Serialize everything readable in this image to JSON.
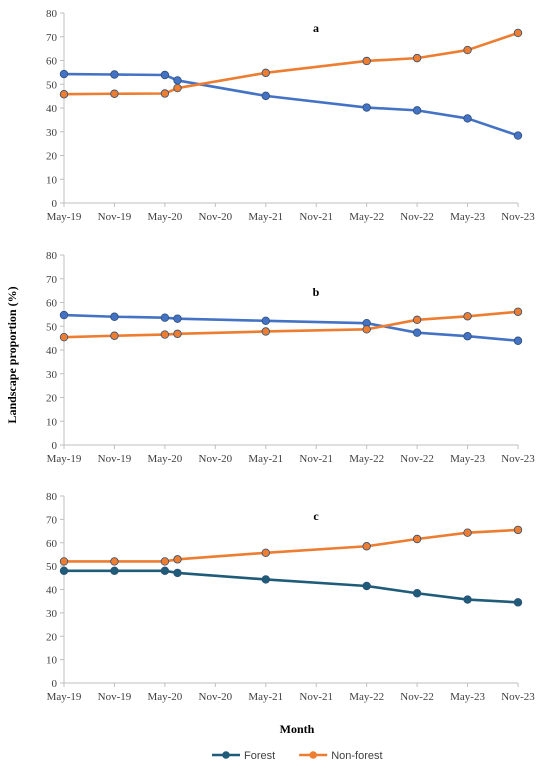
{
  "chart_data": [
    {
      "type": "line",
      "panel_label": "a",
      "x": [
        2019.375,
        2019.875,
        2020.375,
        2020.5,
        2021.375,
        2022.375,
        2022.875,
        2023.375,
        2023.875
      ],
      "categories": [
        "May-19",
        "Nov-19",
        "May-20",
        "Nov-20",
        "May-21",
        "Nov-21",
        "May-22",
        "Nov-22",
        "May-23",
        "Nov-23"
      ],
      "ylim": [
        0,
        80
      ],
      "yticks": [
        0,
        10,
        20,
        30,
        40,
        50,
        60,
        70,
        80
      ],
      "series": [
        {
          "name": "Forest",
          "color": "#4472C4",
          "values": [
            54.3,
            54.1,
            53.9,
            51.6,
            45.1,
            40.2,
            39.0,
            35.6,
            28.4
          ]
        },
        {
          "name": "Non-forest",
          "color": "#ED7D31",
          "values": [
            45.8,
            46.0,
            46.1,
            48.4,
            54.8,
            59.8,
            61.0,
            64.4,
            71.6
          ]
        }
      ]
    },
    {
      "type": "line",
      "panel_label": "b",
      "x": [
        2019.375,
        2019.875,
        2020.375,
        2020.5,
        2021.375,
        2022.375,
        2022.875,
        2023.375,
        2023.875
      ],
      "categories": [
        "May-19",
        "Nov-19",
        "May-20",
        "Nov-20",
        "May-21",
        "Nov-21",
        "May-22",
        "Nov-22",
        "May-23",
        "Nov-23"
      ],
      "ylim": [
        0,
        80
      ],
      "yticks": [
        0,
        10,
        20,
        30,
        40,
        50,
        60,
        70,
        80
      ],
      "series": [
        {
          "name": "Forest",
          "color": "#4472C4",
          "values": [
            54.7,
            54.0,
            53.6,
            53.2,
            52.3,
            51.3,
            47.3,
            45.8,
            43.9
          ]
        },
        {
          "name": "Non-forest",
          "color": "#ED7D31",
          "values": [
            45.4,
            46.0,
            46.5,
            46.8,
            47.8,
            48.7,
            52.7,
            54.2,
            56.1
          ]
        }
      ]
    },
    {
      "type": "line",
      "panel_label": "c",
      "x": [
        2019.375,
        2019.875,
        2020.375,
        2020.5,
        2021.375,
        2022.375,
        2022.875,
        2023.375,
        2023.875
      ],
      "categories": [
        "May-19",
        "Nov-19",
        "May-20",
        "Nov-20",
        "May-21",
        "Nov-21",
        "May-22",
        "Nov-22",
        "May-23",
        "Nov-23"
      ],
      "ylim": [
        0,
        80
      ],
      "yticks": [
        0,
        10,
        20,
        30,
        40,
        50,
        60,
        70,
        80
      ],
      "series": [
        {
          "name": "Forest",
          "color": "#1F5C7A",
          "values": [
            48.0,
            48.0,
            48.0,
            47.1,
            44.3,
            41.5,
            38.4,
            35.7,
            34.5
          ]
        },
        {
          "name": "Non-forest",
          "color": "#ED7D31",
          "values": [
            52.0,
            52.0,
            52.0,
            52.9,
            55.7,
            58.5,
            61.6,
            64.3,
            65.5
          ]
        }
      ]
    }
  ],
  "ylabel": "Landscape proportion (%)",
  "xlabel": "Month",
  "legend": {
    "placement": "bottom-center",
    "items": [
      {
        "label": "Forest",
        "color": "#1F5C7A"
      },
      {
        "label": "Non-forest",
        "color": "#ED7D31"
      }
    ]
  }
}
